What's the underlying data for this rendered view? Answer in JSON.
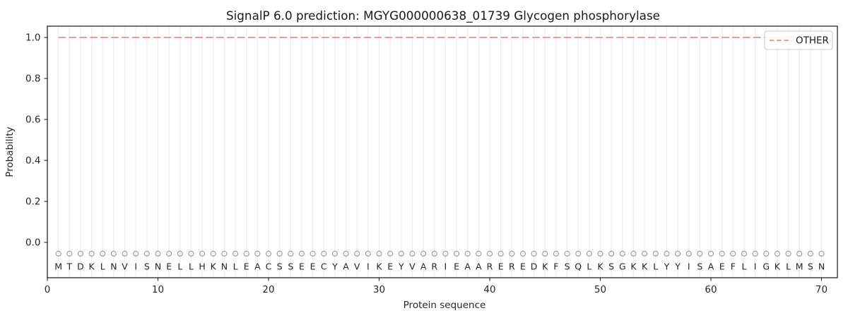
{
  "figure": {
    "title": "SignalP 6.0 prediction: MGYG000000638_01739 Glycogen phosphorylase"
  },
  "chart_data": {
    "type": "line",
    "title": "SignalP 6.0 prediction: MGYG000000638_01739 Glycogen phosphorylase",
    "xlabel": "Protein sequence",
    "ylabel": "Probability",
    "xlim": [
      0,
      71.4
    ],
    "ylim": [
      -0.17,
      1.06
    ],
    "xticks": [
      0,
      10,
      20,
      30,
      40,
      50,
      60,
      70
    ],
    "yticks": [
      {
        "value": 0.0,
        "label": "0.0"
      },
      {
        "value": 0.2,
        "label": "0.2"
      },
      {
        "value": 0.4,
        "label": "0.4"
      },
      {
        "value": 0.6,
        "label": "0.6"
      },
      {
        "value": 0.8,
        "label": "0.8"
      },
      {
        "value": 1.0,
        "label": "1.0"
      }
    ],
    "grid": {
      "axis": "x",
      "at": "every residue position 1-70",
      "color": "#efefef"
    },
    "legend": {
      "location": "upper right",
      "entries": [
        {
          "label": "OTHER",
          "color": "#ee8b8b",
          "linestyle": "dashed"
        }
      ]
    },
    "n_residues": 70,
    "sequence": "MTDKLNVISNELLHKNLEACSSEECYAVIKEYVARIEAAREREDKFSQLKSGKKLYYISAEFLIGKLMSN",
    "series": [
      {
        "name": "OTHER",
        "color": "#ee8b8b",
        "linestyle": "dashed",
        "x_start": 1,
        "x_end": 70,
        "constant_value": 1.0,
        "values": [
          1.0,
          1.0,
          1.0,
          1.0,
          1.0,
          1.0,
          1.0,
          1.0,
          1.0,
          1.0,
          1.0,
          1.0,
          1.0,
          1.0,
          1.0,
          1.0,
          1.0,
          1.0,
          1.0,
          1.0,
          1.0,
          1.0,
          1.0,
          1.0,
          1.0,
          1.0,
          1.0,
          1.0,
          1.0,
          1.0,
          1.0,
          1.0,
          1.0,
          1.0,
          1.0,
          1.0,
          1.0,
          1.0,
          1.0,
          1.0,
          1.0,
          1.0,
          1.0,
          1.0,
          1.0,
          1.0,
          1.0,
          1.0,
          1.0,
          1.0,
          1.0,
          1.0,
          1.0,
          1.0,
          1.0,
          1.0,
          1.0,
          1.0,
          1.0,
          1.0,
          1.0,
          1.0,
          1.0,
          1.0,
          1.0,
          1.0,
          1.0,
          1.0,
          1.0,
          1.0
        ]
      }
    ],
    "residue_markers": {
      "shape": "open-circle",
      "y_value": -0.055,
      "color": "#9a9a9a"
    },
    "style": {
      "line_other": "#ee8b8b",
      "grid_color": "#efefef",
      "marker_color": "#9a9a9a",
      "text_color": "#262626",
      "spine_color": "#000000",
      "legend_border": "#cccccc",
      "background": "#ffffff"
    }
  }
}
